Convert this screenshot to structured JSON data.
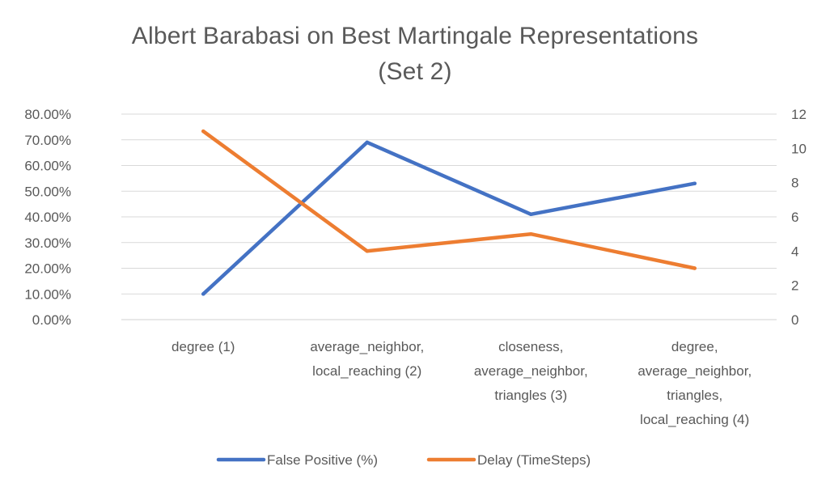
{
  "chart_data": {
    "type": "line",
    "title_lines": [
      "Albert Barabasi on Best Martingale Representations",
      "(Set 2)"
    ],
    "categories": [
      [
        "degree (1)"
      ],
      [
        "average_neighbor,",
        "local_reaching (2)"
      ],
      [
        "closeness,",
        "average_neighbor,",
        "triangles (3)"
      ],
      [
        "degree,",
        "average_neighbor,",
        "triangles,",
        "local_reaching (4)"
      ]
    ],
    "y_left": {
      "min": 0,
      "max": 0.8,
      "step": 0.1,
      "tick_labels": [
        "0.00%",
        "10.00%",
        "20.00%",
        "30.00%",
        "40.00%",
        "50.00%",
        "60.00%",
        "70.00%",
        "80.00%"
      ]
    },
    "y_right": {
      "min": 0,
      "max": 12,
      "step": 2,
      "tick_labels": [
        "0",
        "2",
        "4",
        "6",
        "8",
        "10",
        "12"
      ]
    },
    "grid": true,
    "legend_position": "bottom",
    "series": [
      {
        "name": "False Positive (%)",
        "axis": "left",
        "color": "#4472C4",
        "values": [
          0.1,
          0.69,
          0.41,
          0.53
        ]
      },
      {
        "name": "Delay (TimeSteps)",
        "axis": "right",
        "color": "#ED7D31",
        "values": [
          11,
          4,
          5,
          3
        ]
      }
    ]
  }
}
